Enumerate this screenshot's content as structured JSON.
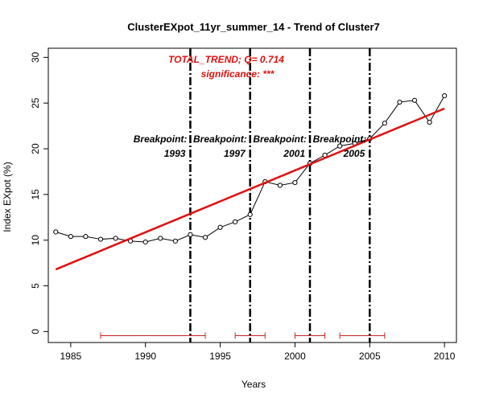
{
  "chart_data": {
    "type": "line",
    "title": "ClusterEXpot_11yr_summer_14  -  Trend of Cluster7",
    "xlabel": "Years",
    "ylabel": "Index EXpot (%)",
    "xlim": [
      1983.5,
      2010.8
    ],
    "ylim": [
      -1.2,
      31.0
    ],
    "x_ticks": [
      1985,
      1990,
      1995,
      2000,
      2005,
      2010
    ],
    "y_ticks": [
      0,
      5,
      10,
      15,
      20,
      25,
      30
    ],
    "series": [
      {
        "x": [
          1984,
          1985,
          1986,
          1987,
          1988,
          1989,
          1990,
          1991,
          1992,
          1993,
          1994,
          1995,
          1996,
          1997,
          1998,
          1999,
          2000,
          2001,
          2002,
          2003,
          2004,
          2005,
          2006,
          2007,
          2008,
          2009,
          2010
        ],
        "y": [
          10.9,
          10.4,
          10.4,
          10.1,
          10.2,
          9.9,
          9.8,
          10.2,
          9.9,
          10.6,
          10.3,
          11.4,
          12.0,
          12.8,
          16.4,
          16.0,
          16.3,
          18.4,
          19.3,
          20.3,
          20.6,
          21.1,
          22.8,
          25.1,
          25.3,
          22.9,
          25.8
        ]
      }
    ],
    "trend": {
      "x": [
        1984,
        2010
      ],
      "y": [
        6.8,
        24.4
      ],
      "color": "#e01010",
      "label_line1": "TOTAL_TREND;   Q= 0.714",
      "label_line2": "significance: ***"
    },
    "breakpoints": [
      {
        "year": 1993,
        "label": "Breakpoint:",
        "year_label": "1993",
        "ci": [
          1987,
          1994
        ]
      },
      {
        "year": 1997,
        "label": "Breakpoint:",
        "year_label": "1997",
        "ci": [
          1996,
          1998
        ]
      },
      {
        "year": 2001,
        "label": "Breakpoint:",
        "year_label": "2001",
        "ci": [
          2000,
          2002
        ]
      },
      {
        "year": 2005,
        "label": "Breakpoint:",
        "year_label": "2005",
        "ci": [
          2003,
          2006
        ]
      }
    ],
    "ci_color": "#cc2222",
    "grid": false,
    "legend": "none"
  }
}
